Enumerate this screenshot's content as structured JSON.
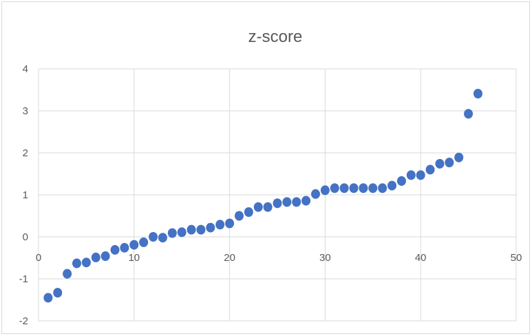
{
  "chart_data": {
    "type": "scatter",
    "title": "z-score",
    "xlabel": "",
    "ylabel": "",
    "xlim": [
      0,
      50
    ],
    "ylim": [
      -2,
      4
    ],
    "xticks": [
      0,
      10,
      20,
      30,
      40,
      50
    ],
    "yticks": [
      -2,
      -1,
      0,
      1,
      2,
      3,
      4
    ],
    "grid": true,
    "legend": "none",
    "marker_color": "#4472c4",
    "series": [
      {
        "x": [
          1,
          2,
          3,
          4,
          5,
          6,
          7,
          8,
          9,
          10,
          11,
          12,
          13,
          14,
          15,
          16,
          17,
          18,
          19,
          20,
          21,
          22,
          23,
          24,
          25,
          26,
          27,
          28,
          29,
          30,
          31,
          32,
          33,
          34,
          35,
          36,
          37,
          38,
          39,
          40,
          41,
          42,
          43,
          44,
          45,
          46
        ],
        "y": [
          -1.45,
          -1.33,
          -0.88,
          -0.63,
          -0.61,
          -0.49,
          -0.46,
          -0.31,
          -0.26,
          -0.19,
          -0.13,
          0.0,
          -0.02,
          0.09,
          0.11,
          0.17,
          0.17,
          0.22,
          0.29,
          0.32,
          0.5,
          0.59,
          0.71,
          0.71,
          0.8,
          0.83,
          0.83,
          0.86,
          1.02,
          1.11,
          1.16,
          1.16,
          1.16,
          1.16,
          1.16,
          1.16,
          1.22,
          1.33,
          1.47,
          1.47,
          1.6,
          1.74,
          1.77,
          1.89,
          2.93,
          3.41
        ]
      }
    ]
  }
}
